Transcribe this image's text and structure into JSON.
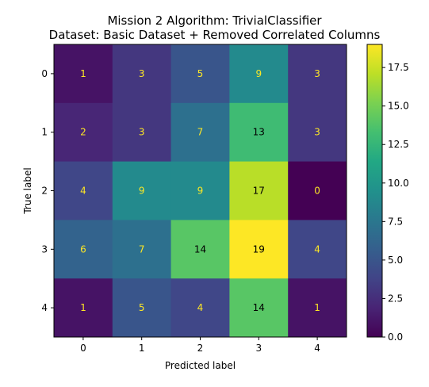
{
  "chart_data": {
    "type": "heatmap",
    "title_line1": "Mission 2 Algorithm: TrivialClassifier",
    "title_line2": "Dataset: Basic Dataset + Removed Correlated Columns",
    "xlabel": "Predicted label",
    "ylabel": "True label",
    "x_categories": [
      "0",
      "1",
      "2",
      "3",
      "4"
    ],
    "y_categories": [
      "0",
      "1",
      "2",
      "3",
      "4"
    ],
    "values": [
      [
        1,
        3,
        5,
        9,
        3
      ],
      [
        2,
        3,
        7,
        13,
        3
      ],
      [
        4,
        9,
        9,
        17,
        0
      ],
      [
        6,
        7,
        14,
        19,
        4
      ],
      [
        1,
        5,
        4,
        14,
        1
      ]
    ],
    "colormap": "viridis",
    "vmin": 0,
    "vmax": 19,
    "colorbar_ticks": [
      "0.0",
      "2.5",
      "5.0",
      "7.5",
      "10.0",
      "12.5",
      "15.0",
      "17.5"
    ],
    "label_color_light": "#fde725",
    "label_color_dark": "#000000"
  }
}
